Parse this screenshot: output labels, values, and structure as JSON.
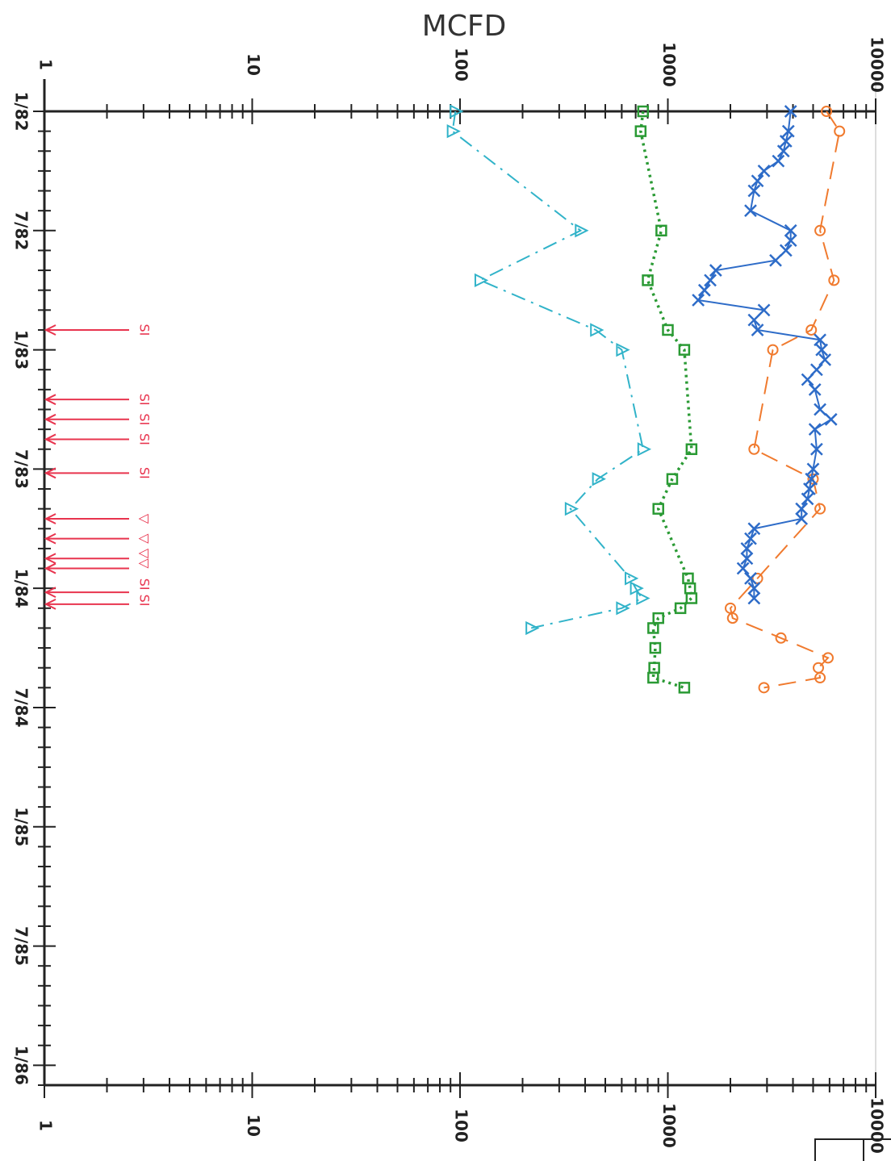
{
  "chart_data": {
    "type": "line",
    "title": "",
    "ylabel": "MCFD",
    "xlabel": "",
    "y_scale": "log",
    "ylim": [
      1,
      10000
    ],
    "y_ticks": [
      "1",
      "10",
      "100",
      "1000",
      "10000"
    ],
    "x_ticks": [
      "1/82",
      "7/82",
      "1/83",
      "7/83",
      "1/84",
      "7/84",
      "1/85",
      "7/85",
      "1/86"
    ],
    "x_range_months": [
      0,
      49
    ],
    "orientation": "rotated 90° clockwise (time runs top to bottom, MCFD increases to the right)",
    "series": [
      {
        "color": "#f07a2e",
        "marker": "circle",
        "line": "long-dash",
        "points": [
          [
            0,
            5800
          ],
          [
            1,
            6700
          ],
          [
            6,
            5400
          ],
          [
            8.5,
            6300
          ],
          [
            11,
            4900
          ],
          [
            12,
            3200
          ],
          [
            17,
            2600
          ],
          [
            18.5,
            5000
          ],
          [
            20,
            5400
          ],
          [
            23.5,
            2700
          ],
          [
            25,
            2000
          ],
          [
            25.5,
            2050
          ],
          [
            26.5,
            3500
          ],
          [
            27.5,
            5900
          ],
          [
            28,
            5300
          ],
          [
            28.5,
            5400
          ],
          [
            29,
            2900
          ]
        ]
      },
      {
        "color": "#2e6cc8",
        "marker": "x",
        "line": "solid",
        "points": [
          [
            0,
            3900
          ],
          [
            1,
            3800
          ],
          [
            1.5,
            3700
          ],
          [
            2,
            3600
          ],
          [
            2.5,
            3400
          ],
          [
            3,
            2900
          ],
          [
            3.5,
            2700
          ],
          [
            4,
            2600
          ],
          [
            5,
            2500
          ],
          [
            6,
            3900
          ],
          [
            6.5,
            3900
          ],
          [
            7,
            3700
          ],
          [
            7.5,
            3300
          ],
          [
            8,
            1700
          ],
          [
            8.5,
            1600
          ],
          [
            9,
            1500
          ],
          [
            9.5,
            1400
          ],
          [
            10,
            2900
          ],
          [
            10.5,
            2600
          ],
          [
            11,
            2700
          ],
          [
            11.5,
            5400
          ],
          [
            12,
            5500
          ],
          [
            12.5,
            5700
          ],
          [
            13,
            5200
          ],
          [
            13.5,
            4700
          ],
          [
            14,
            5100
          ],
          [
            15,
            5400
          ],
          [
            15.5,
            6100
          ],
          [
            16,
            5100
          ],
          [
            17,
            5200
          ],
          [
            18,
            5000
          ],
          [
            18.5,
            4900
          ],
          [
            19,
            4800
          ],
          [
            19.5,
            4700
          ],
          [
            20,
            4400
          ],
          [
            20.5,
            4400
          ],
          [
            21,
            2600
          ],
          [
            21.5,
            2500
          ],
          [
            22,
            2400
          ],
          [
            22.5,
            2400
          ],
          [
            23,
            2300
          ],
          [
            23.5,
            2500
          ],
          [
            24,
            2600
          ],
          [
            24.5,
            2600
          ]
        ]
      },
      {
        "color": "#2a9a34",
        "marker": "square",
        "line": "dotted",
        "points": [
          [
            0,
            760
          ],
          [
            1,
            740
          ],
          [
            6,
            930
          ],
          [
            8.5,
            800
          ],
          [
            11,
            1000
          ],
          [
            12,
            1200
          ],
          [
            17,
            1300
          ],
          [
            18.5,
            1050
          ],
          [
            20,
            900
          ],
          [
            23.5,
            1250
          ],
          [
            24,
            1280
          ],
          [
            24.5,
            1300
          ],
          [
            25,
            1150
          ],
          [
            25.5,
            900
          ],
          [
            26,
            850
          ],
          [
            27,
            870
          ],
          [
            28,
            860
          ],
          [
            28.5,
            850
          ],
          [
            29,
            1200
          ]
        ]
      },
      {
        "color": "#31b3c9",
        "marker": "triangle",
        "line": "dash-dot",
        "points": [
          [
            0,
            95
          ],
          [
            1,
            92
          ],
          [
            6,
            380
          ],
          [
            8.5,
            125
          ],
          [
            11,
            450
          ],
          [
            12,
            600
          ],
          [
            17,
            760
          ],
          [
            18.5,
            460
          ],
          [
            20,
            340
          ],
          [
            23.5,
            660
          ],
          [
            24,
            700
          ],
          [
            24.5,
            750
          ],
          [
            25,
            600
          ],
          [
            26,
            220
          ]
        ]
      }
    ],
    "annotations": [
      {
        "x": 11,
        "label": "SI"
      },
      {
        "x": 14.5,
        "label": "SI"
      },
      {
        "x": 15.5,
        "label": "SI"
      },
      {
        "x": 16.5,
        "label": "SI"
      },
      {
        "x": 18.2,
        "label": "SI"
      },
      {
        "x": 20.5,
        "label": "▽"
      },
      {
        "x": 21.5,
        "label": "▽"
      },
      {
        "x": 22.5,
        "label": "▽▽"
      },
      {
        "x": 23.0,
        "label": ""
      },
      {
        "x": 24.2,
        "label": "SI SI"
      },
      {
        "x": 24.8,
        "label": ""
      }
    ],
    "annotation_color": "#e8344e"
  }
}
